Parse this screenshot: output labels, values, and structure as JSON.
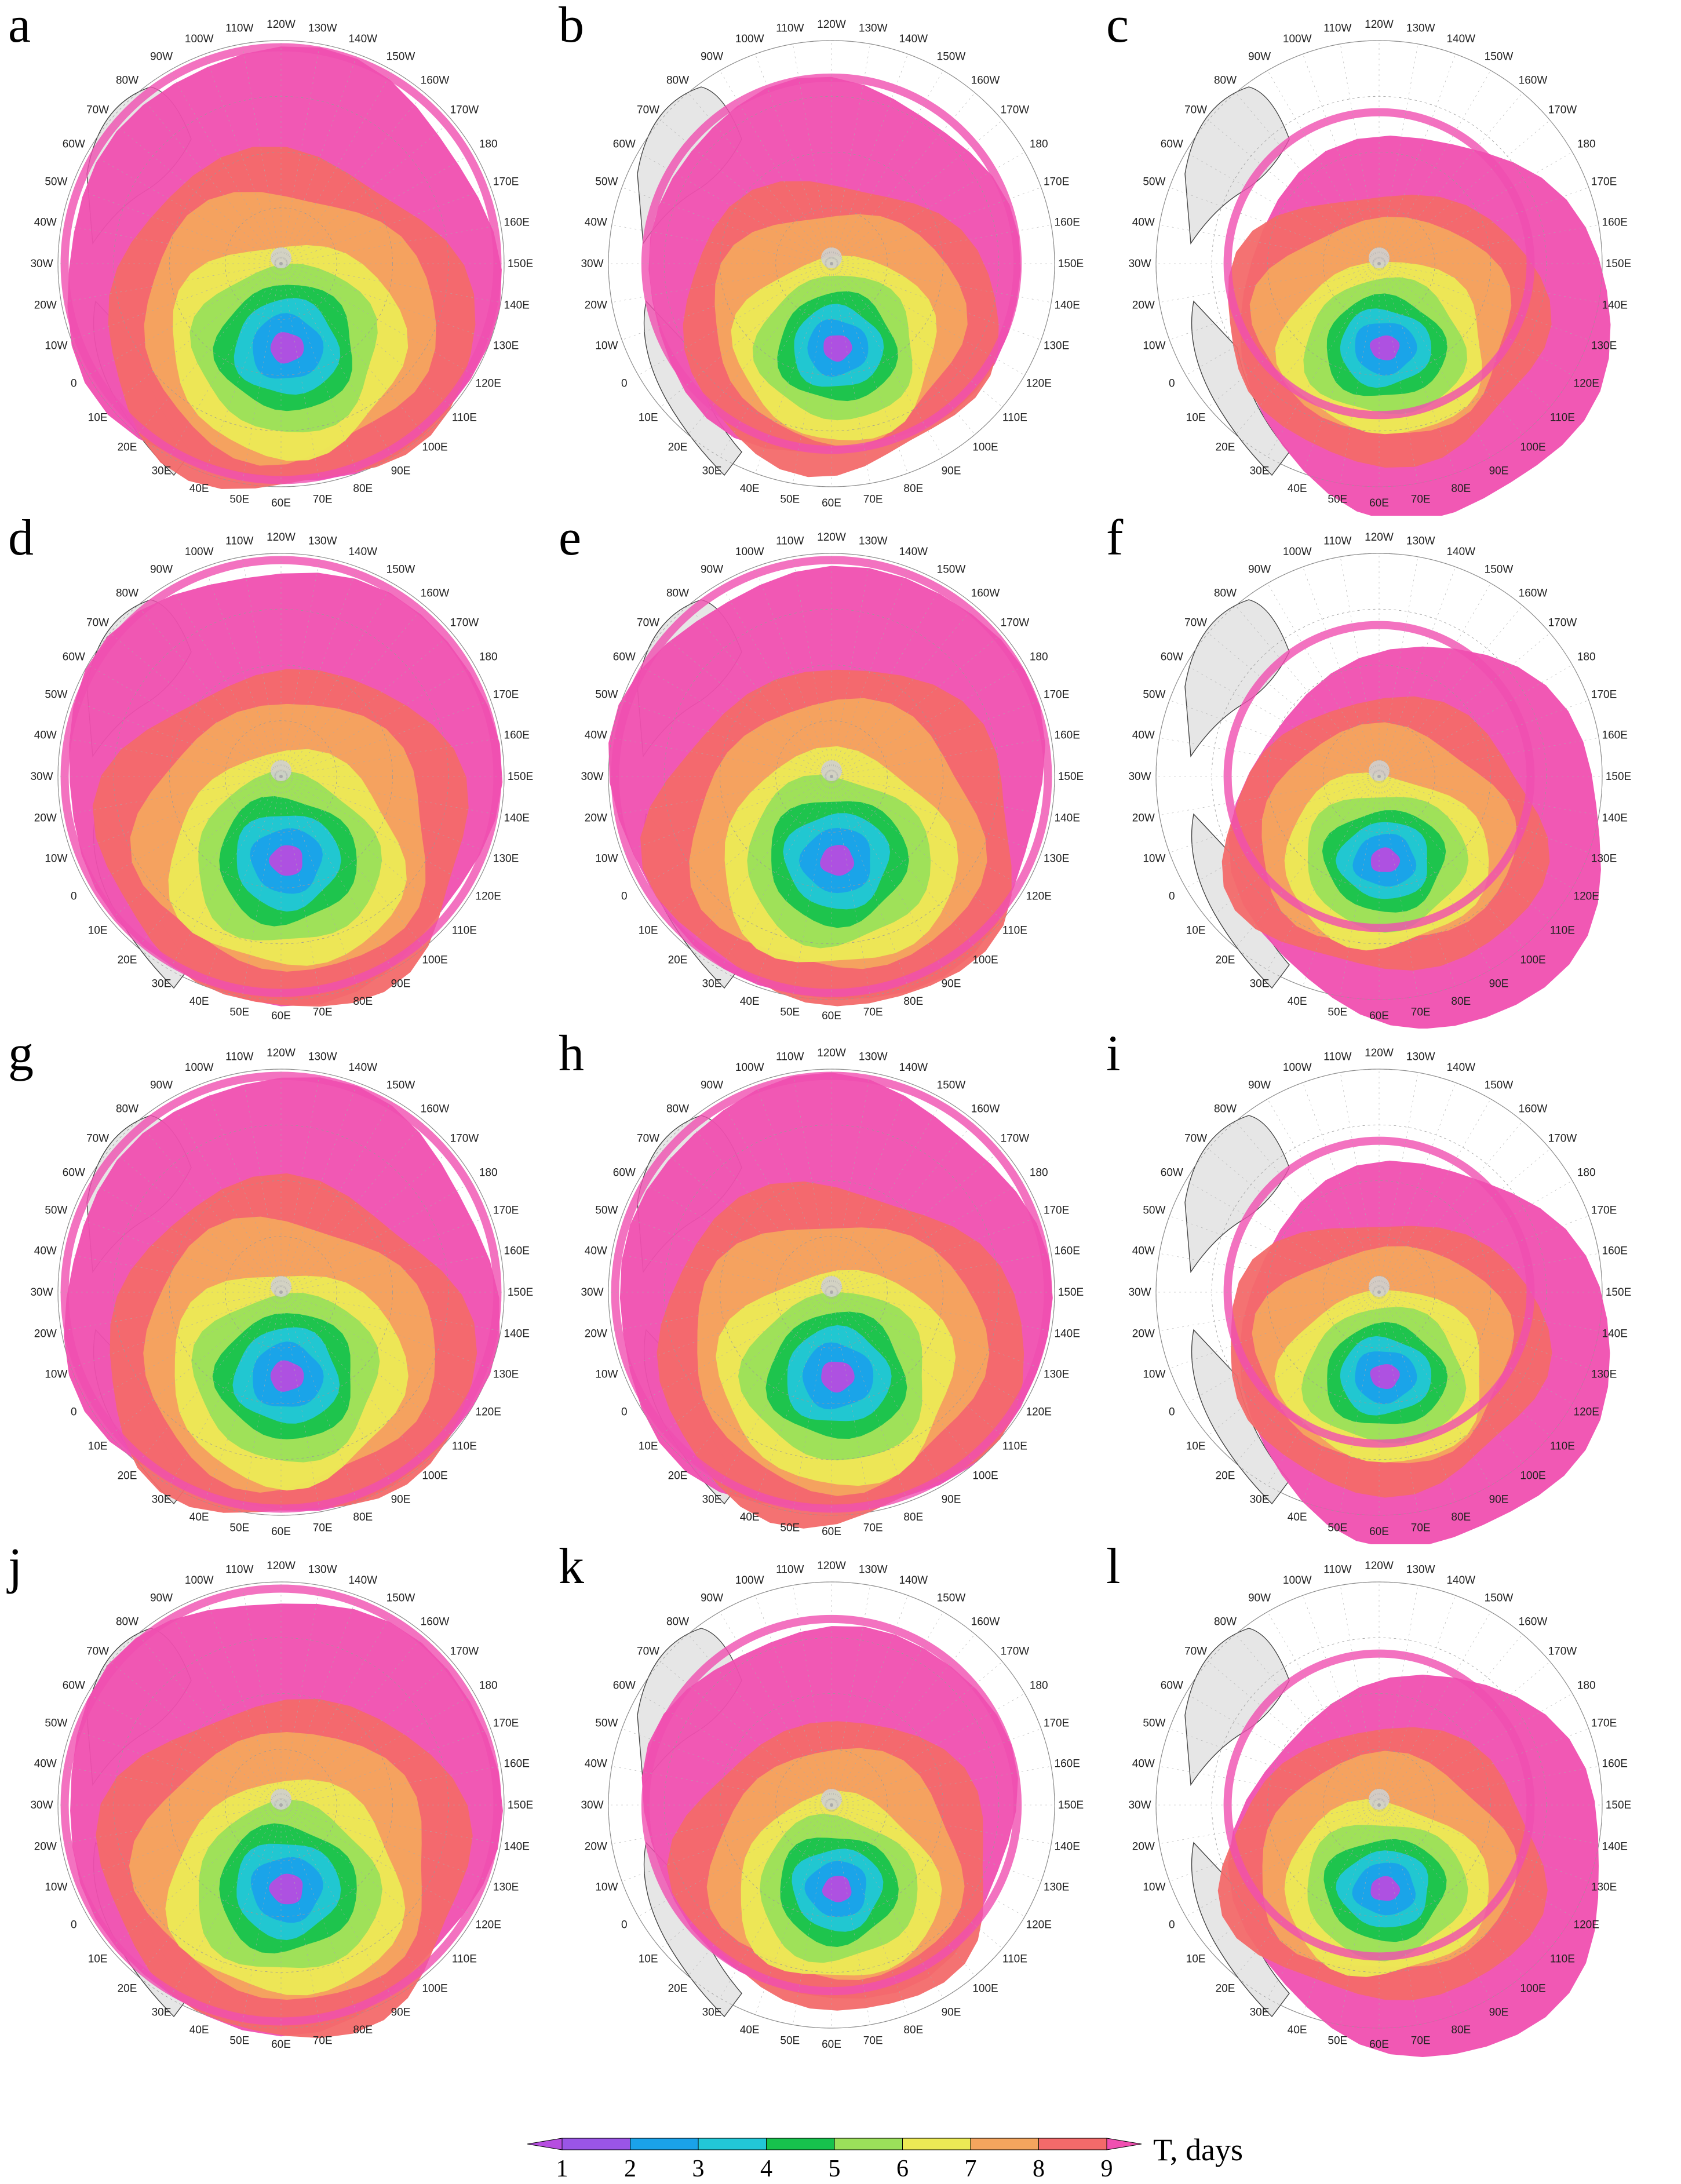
{
  "panels": [
    {
      "letter": "a",
      "coverage": "full"
    },
    {
      "letter": "b",
      "coverage": "partial"
    },
    {
      "letter": "c",
      "coverage": "sparse"
    },
    {
      "letter": "d",
      "coverage": "full"
    },
    {
      "letter": "e",
      "coverage": "full"
    },
    {
      "letter": "f",
      "coverage": "sparse"
    },
    {
      "letter": "g",
      "coverage": "full"
    },
    {
      "letter": "h",
      "coverage": "full"
    },
    {
      "letter": "i",
      "coverage": "sparse"
    },
    {
      "letter": "j",
      "coverage": "full"
    },
    {
      "letter": "k",
      "coverage": "partial"
    },
    {
      "letter": "l",
      "coverage": "sparse"
    }
  ],
  "longitude_labels": [
    "120W",
    "130W",
    "140W",
    "150W",
    "160W",
    "170W",
    "180",
    "170E",
    "160E",
    "150E",
    "140E",
    "130E",
    "120E",
    "110E",
    "100E",
    "90E",
    "80E",
    "70E",
    "60E",
    "50E",
    "40E",
    "30E",
    "20E",
    "10E",
    "0",
    "10W",
    "20W",
    "30W",
    "40W",
    "50W",
    "60W",
    "70W",
    "80W",
    "90W",
    "100W",
    "110W"
  ],
  "colorbar": {
    "title": "T, days",
    "ticks": [
      "1",
      "2",
      "3",
      "4",
      "5",
      "6",
      "7",
      "8",
      "9"
    ],
    "colors": [
      "#b64de0",
      "#9a55e6",
      "#1aa2ea",
      "#22c7d8",
      "#17c24d",
      "#9be05a",
      "#ecea55",
      "#f4a55e",
      "#f36a6a",
      "#f04fb0"
    ]
  }
}
